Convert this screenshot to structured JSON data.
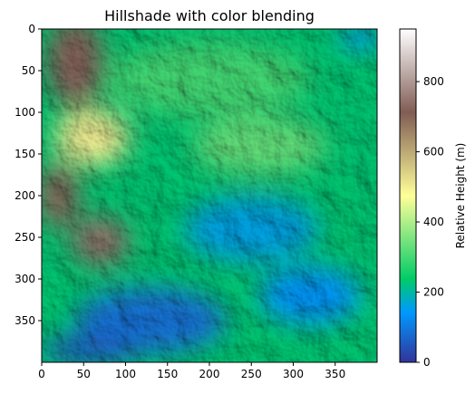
{
  "chart_data": {
    "type": "heatmap",
    "title": "Hillshade with color blending",
    "xlim": [
      0,
      400
    ],
    "ylim": [
      400,
      0
    ],
    "x_ticks": [
      0,
      50,
      100,
      150,
      200,
      250,
      300,
      350
    ],
    "y_ticks": [
      0,
      50,
      100,
      150,
      200,
      250,
      300,
      350
    ],
    "colorbar": {
      "label": "Relative Height (m)",
      "range": [
        0,
        950
      ],
      "ticks": [
        0,
        200,
        400,
        600,
        800
      ],
      "colormap": "terrain",
      "stops": [
        {
          "v": 0.0,
          "color": "#333399"
        },
        {
          "v": 0.15,
          "color": "#0099ff"
        },
        {
          "v": 0.25,
          "color": "#00cc66"
        },
        {
          "v": 0.5,
          "color": "#ffff99"
        },
        {
          "v": 0.75,
          "color": "#805c54"
        },
        {
          "v": 1.0,
          "color": "#ffffff"
        }
      ]
    },
    "elevation_regions": [
      {
        "x": 40,
        "y": 40,
        "rx": 35,
        "ry": 55,
        "value": 720
      },
      {
        "x": 20,
        "y": 200,
        "rx": 25,
        "ry": 40,
        "value": 700
      },
      {
        "x": 70,
        "y": 255,
        "rx": 35,
        "ry": 30,
        "value": 740
      },
      {
        "x": 60,
        "y": 130,
        "rx": 45,
        "ry": 35,
        "value": 500
      },
      {
        "x": 200,
        "y": 60,
        "rx": 120,
        "ry": 45,
        "value": 300
      },
      {
        "x": 260,
        "y": 140,
        "rx": 80,
        "ry": 35,
        "value": 330
      },
      {
        "x": 250,
        "y": 240,
        "rx": 80,
        "ry": 40,
        "value": 160
      },
      {
        "x": 320,
        "y": 320,
        "rx": 60,
        "ry": 35,
        "value": 140
      },
      {
        "x": 130,
        "y": 350,
        "rx": 90,
        "ry": 40,
        "value": 90
      },
      {
        "x": 60,
        "y": 385,
        "rx": 60,
        "ry": 18,
        "value": 60
      },
      {
        "x": 380,
        "y": 10,
        "rx": 25,
        "ry": 15,
        "value": 150
      }
    ]
  }
}
